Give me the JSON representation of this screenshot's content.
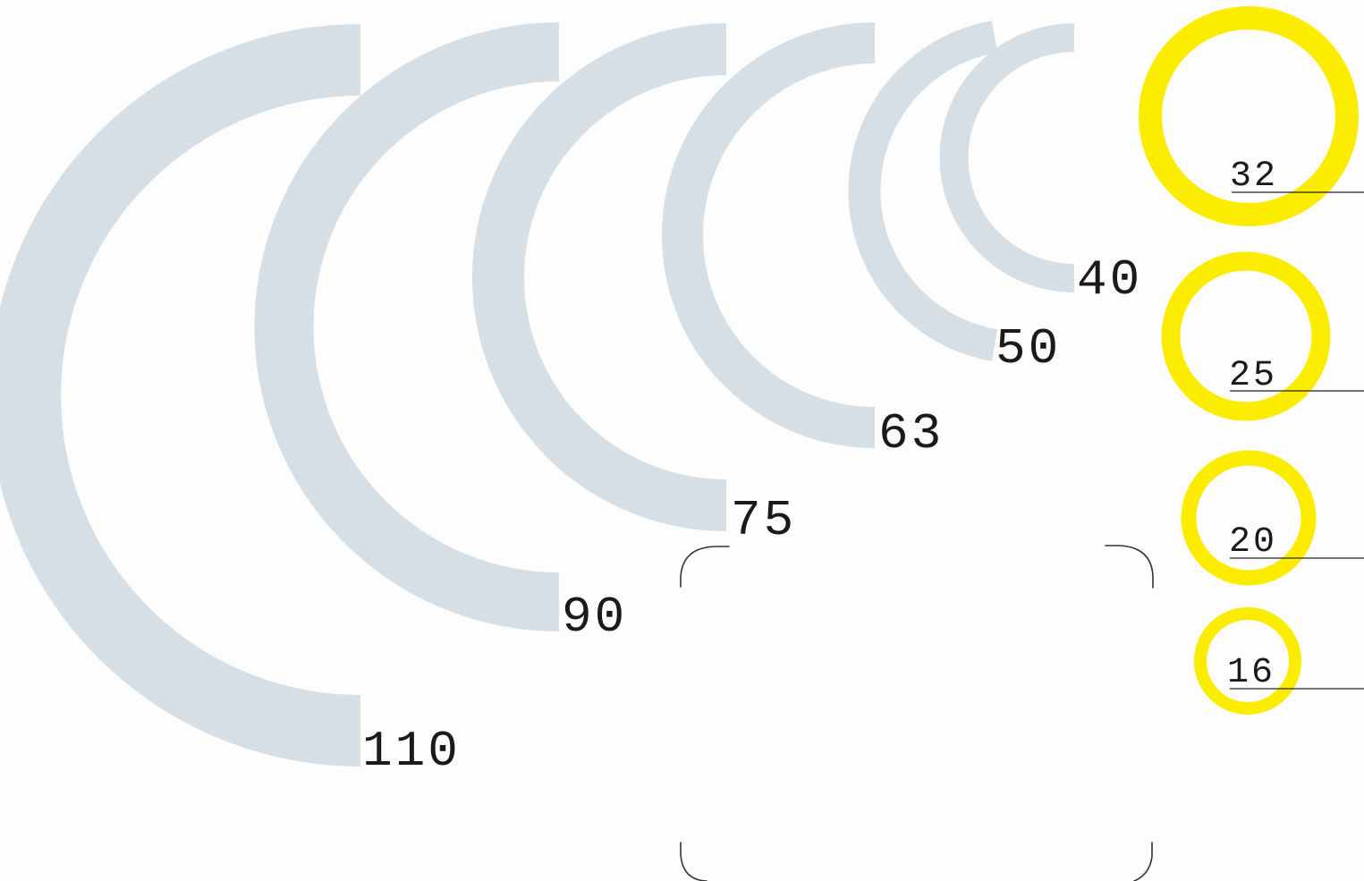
{
  "colors": {
    "background": "#fdfdfd",
    "half_ring": "#d6dfe5",
    "full_ring": "#fbec00",
    "text": "#1a1a1a"
  },
  "half_rings": [
    {
      "label": "110"
    },
    {
      "label": "90"
    },
    {
      "label": "75"
    },
    {
      "label": "63"
    },
    {
      "label": "50"
    },
    {
      "label": "40"
    }
  ],
  "full_rings": [
    {
      "label": "32"
    },
    {
      "label": "25"
    },
    {
      "label": "20"
    },
    {
      "label": "16"
    }
  ]
}
